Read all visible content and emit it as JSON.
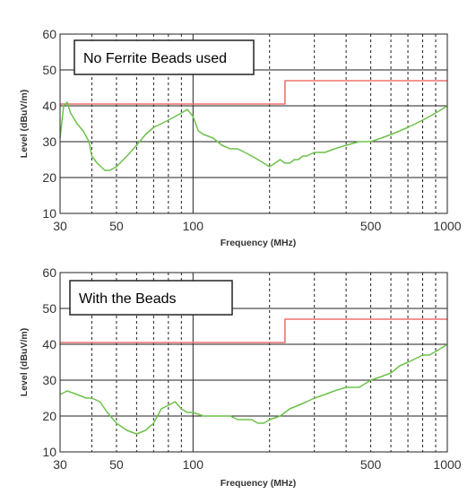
{
  "chart_data": [
    {
      "type": "line",
      "annotation": "No Ferrite Beads used",
      "xlabel": "Frequency (MHz)",
      "ylabel": "Level (dBuV/m)",
      "xscale": "log",
      "xlim": [
        30,
        1000
      ],
      "ylim": [
        10,
        60
      ],
      "yticks": [
        10,
        20,
        30,
        40,
        50,
        60
      ],
      "xtick_labels": [
        {
          "value": 30,
          "label": "30"
        },
        {
          "value": 50,
          "label": "50"
        },
        {
          "value": 100,
          "label": "100"
        },
        {
          "value": 500,
          "label": "500"
        },
        {
          "value": 1000,
          "label": "1000"
        }
      ],
      "major_x_grid": [
        30,
        100,
        1000
      ],
      "minor_x_grid": [
        40,
        50,
        60,
        70,
        80,
        90,
        200,
        300,
        400,
        500,
        600,
        700,
        800,
        900
      ],
      "grid": true,
      "series": [
        {
          "role": "limit",
          "color": "#f07070",
          "x": [
            30,
            230,
            230,
            1000
          ],
          "y": [
            40.5,
            40.5,
            47,
            47
          ]
        },
        {
          "role": "measurement",
          "color": "#6cc24a",
          "x": [
            30,
            31,
            32,
            33,
            35,
            37,
            39,
            40,
            42,
            45,
            47,
            50,
            55,
            60,
            65,
            70,
            75,
            80,
            85,
            90,
            95,
            100,
            105,
            110,
            120,
            130,
            140,
            150,
            160,
            170,
            180,
            190,
            200,
            210,
            220,
            230,
            240,
            250,
            260,
            270,
            280,
            300,
            330,
            360,
            400,
            450,
            500,
            550,
            600,
            650,
            700,
            750,
            800,
            850,
            900,
            950,
            1000
          ],
          "y": [
            31,
            40,
            41,
            38,
            35,
            33,
            30,
            26,
            24,
            22,
            22,
            23,
            26,
            29,
            32,
            34,
            35,
            36,
            37,
            38,
            39,
            37,
            33,
            32,
            31,
            29,
            28,
            28,
            27,
            26,
            25,
            24,
            23,
            24,
            25,
            24,
            24,
            25,
            25,
            26,
            26,
            27,
            27,
            28,
            29,
            30,
            30,
            31,
            32,
            33,
            34,
            35,
            36,
            37,
            38,
            39,
            40
          ]
        }
      ]
    },
    {
      "type": "line",
      "annotation": "With the Beads",
      "xlabel": "Frequency (MHz)",
      "ylabel": "Level (dBuV/m)",
      "xscale": "log",
      "xlim": [
        30,
        1000
      ],
      "ylim": [
        10,
        60
      ],
      "yticks": [
        10,
        20,
        30,
        40,
        50,
        60
      ],
      "xtick_labels": [
        {
          "value": 30,
          "label": "30"
        },
        {
          "value": 50,
          "label": "50"
        },
        {
          "value": 100,
          "label": "100"
        },
        {
          "value": 500,
          "label": "500"
        },
        {
          "value": 1000,
          "label": "1000"
        }
      ],
      "major_x_grid": [
        30,
        100,
        1000
      ],
      "minor_x_grid": [
        40,
        50,
        60,
        70,
        80,
        90,
        200,
        300,
        400,
        500,
        600,
        700,
        800,
        900
      ],
      "grid": true,
      "series": [
        {
          "role": "limit",
          "color": "#f07070",
          "x": [
            30,
            230,
            230,
            1000
          ],
          "y": [
            40.5,
            40.5,
            47,
            47
          ]
        },
        {
          "role": "measurement",
          "color": "#6cc24a",
          "x": [
            30,
            32,
            35,
            38,
            40,
            43,
            46,
            50,
            55,
            60,
            65,
            70,
            75,
            80,
            85,
            90,
            95,
            100,
            110,
            120,
            130,
            140,
            150,
            160,
            170,
            180,
            190,
            200,
            220,
            240,
            260,
            280,
            300,
            330,
            360,
            400,
            450,
            500,
            550,
            600,
            650,
            700,
            750,
            800,
            850,
            900,
            950,
            1000
          ],
          "y": [
            26,
            27,
            26,
            25,
            25,
            24,
            21,
            18,
            16,
            15,
            16,
            18,
            22,
            23,
            24,
            22,
            21,
            21,
            20,
            20,
            20,
            20,
            19,
            19,
            19,
            18,
            18,
            19,
            20,
            22,
            23,
            24,
            25,
            26,
            27,
            28,
            28,
            30,
            31,
            32,
            34,
            35,
            36,
            37,
            37,
            38,
            39,
            40
          ]
        }
      ]
    }
  ]
}
